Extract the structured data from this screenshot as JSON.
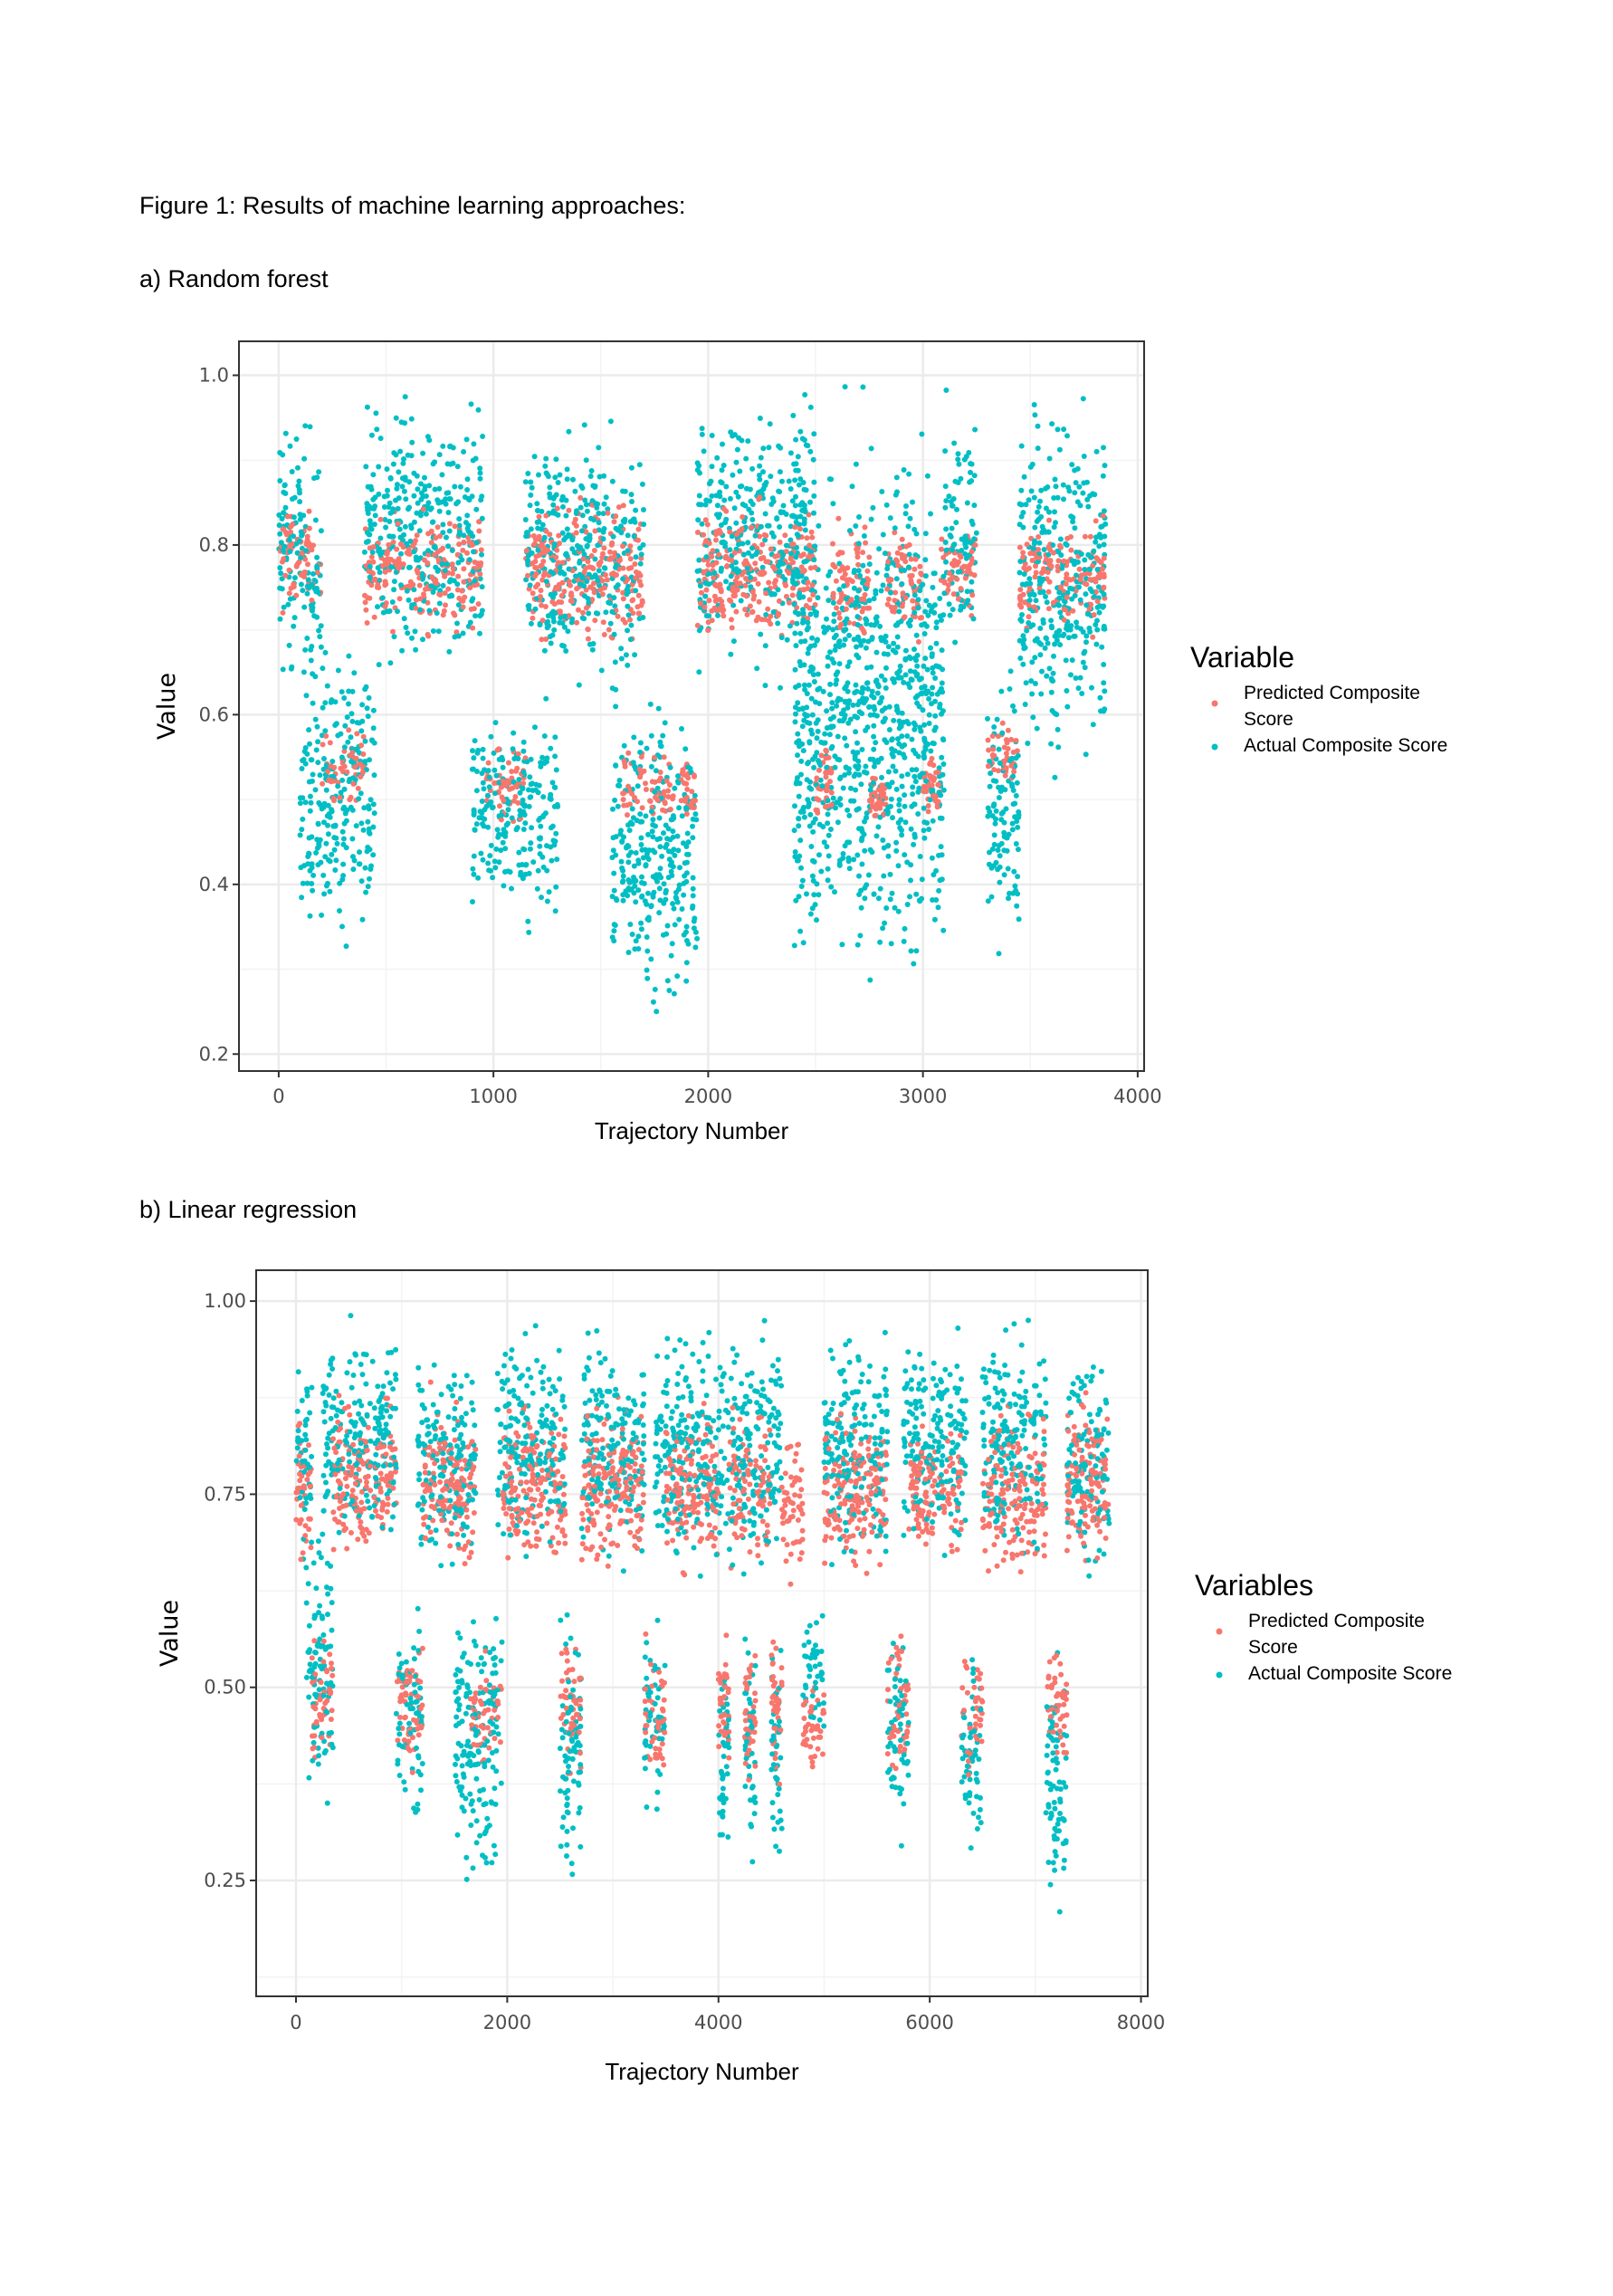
{
  "document": {
    "figure_caption": "Figure 1: Results of machine learning approaches:",
    "panel_a_label": "a) Random forest",
    "panel_b_label": "b) Linear regression"
  },
  "colors": {
    "predicted": "#F8766D",
    "actual": "#00BFC4"
  },
  "chart_data": [
    {
      "type": "scatter",
      "xlabel": "Trajectory Number",
      "ylabel": "Value",
      "xlim": [
        -185,
        4030
      ],
      "ylim": [
        0.18,
        1.04
      ],
      "xticks": [
        "0",
        "1000",
        "2000",
        "3000",
        "4000"
      ],
      "xtick_values": [
        0,
        1000,
        2000,
        3000,
        4000
      ],
      "yticks": [
        "0.2",
        "0.4",
        "0.6",
        "0.8",
        "1.0"
      ],
      "ytick_values": [
        0.2,
        0.4,
        0.6,
        0.8,
        1.0
      ],
      "grid": true,
      "legend": {
        "title": "Variable",
        "placement": "right",
        "entries": [
          "Predicted Composite",
          "Score",
          "Actual Composite Score"
        ]
      },
      "series": [
        {
          "name": "Predicted Composite Score",
          "color": "#F8766D",
          "clusters": [
            {
              "x": [
                0,
                200
              ],
              "y": [
                0.7,
                0.86
              ]
            },
            {
              "x": [
                200,
                400
              ],
              "y": [
                0.48,
                0.6
              ]
            },
            {
              "x": [
                400,
                950
              ],
              "y": [
                0.68,
                0.86
              ]
            },
            {
              "x": [
                950,
                1150
              ],
              "y": [
                0.46,
                0.58
              ]
            },
            {
              "x": [
                1150,
                1700
              ],
              "y": [
                0.66,
                0.87
              ]
            },
            {
              "x": [
                1600,
                1950
              ],
              "y": [
                0.45,
                0.57
              ]
            },
            {
              "x": [
                1950,
                2500
              ],
              "y": [
                0.66,
                0.87
              ]
            },
            {
              "x": [
                2500,
                2580
              ],
              "y": [
                0.47,
                0.57
              ]
            },
            {
              "x": [
                2580,
                2750
              ],
              "y": [
                0.66,
                0.86
              ]
            },
            {
              "x": [
                2750,
                2830
              ],
              "y": [
                0.46,
                0.55
              ]
            },
            {
              "x": [
                2830,
                3000
              ],
              "y": [
                0.66,
                0.84
              ]
            },
            {
              "x": [
                3000,
                3080
              ],
              "y": [
                0.47,
                0.56
              ]
            },
            {
              "x": [
                3080,
                3250
              ],
              "y": [
                0.7,
                0.85
              ]
            },
            {
              "x": [
                3300,
                3450
              ],
              "y": [
                0.5,
                0.6
              ]
            },
            {
              "x": [
                3450,
                3850
              ],
              "y": [
                0.68,
                0.85
              ]
            }
          ]
        },
        {
          "name": "Actual Composite Score",
          "color": "#00BFC4",
          "clusters": [
            {
              "x": [
                0,
                200
              ],
              "y": [
                0.6,
                0.98
              ]
            },
            {
              "x": [
                100,
                450
              ],
              "y": [
                0.3,
                0.73
              ]
            },
            {
              "x": [
                400,
                950
              ],
              "y": [
                0.62,
                1.0
              ]
            },
            {
              "x": [
                900,
                1300
              ],
              "y": [
                0.32,
                0.65
              ]
            },
            {
              "x": [
                1150,
                1700
              ],
              "y": [
                0.6,
                0.97
              ]
            },
            {
              "x": [
                1550,
                1950
              ],
              "y": [
                0.22,
                0.66
              ]
            },
            {
              "x": [
                1950,
                2500
              ],
              "y": [
                0.62,
                1.0
              ]
            },
            {
              "x": [
                2400,
                2600
              ],
              "y": [
                0.22,
                0.95
              ]
            },
            {
              "x": [
                2600,
                2850
              ],
              "y": [
                0.22,
                1.0
              ]
            },
            {
              "x": [
                2850,
                3100
              ],
              "y": [
                0.23,
                1.0
              ]
            },
            {
              "x": [
                3100,
                3250
              ],
              "y": [
                0.65,
                1.0
              ]
            },
            {
              "x": [
                3300,
                3450
              ],
              "y": [
                0.28,
                0.7
              ]
            },
            {
              "x": [
                3450,
                3850
              ],
              "y": [
                0.5,
                1.0
              ]
            }
          ]
        }
      ]
    },
    {
      "type": "scatter",
      "xlabel": "Trajectory Number",
      "ylabel": "Value",
      "xlim": [
        -377,
        8064
      ],
      "ylim": [
        0.1,
        1.04
      ],
      "xticks": [
        "0",
        "2000",
        "4000",
        "6000",
        "8000"
      ],
      "xtick_values": [
        0,
        2000,
        4000,
        6000,
        8000
      ],
      "yticks": [
        "0.25",
        "0.50",
        "0.75",
        "1.00"
      ],
      "ytick_values": [
        0.25,
        0.5,
        0.75,
        1.0
      ],
      "grid": true,
      "legend": {
        "title": "Variables",
        "placement": "right",
        "entries": [
          "Predicted Composite",
          "Score",
          "Actual Composite Score"
        ]
      },
      "series": [
        {
          "name": "Predicted Composite Score",
          "color": "#F8766D",
          "clusters": [
            {
              "x": [
                0,
                150
              ],
              "y": [
                0.62,
                0.88
              ]
            },
            {
              "x": [
                150,
                350
              ],
              "y": [
                0.37,
                0.6
              ]
            },
            {
              "x": [
                350,
                950
              ],
              "y": [
                0.64,
                0.9
              ]
            },
            {
              "x": [
                950,
                1200
              ],
              "y": [
                0.37,
                0.6
              ]
            },
            {
              "x": [
                1200,
                1700
              ],
              "y": [
                0.62,
                0.9
              ]
            },
            {
              "x": [
                1650,
                1950
              ],
              "y": [
                0.38,
                0.55
              ]
            },
            {
              "x": [
                1950,
                2550
              ],
              "y": [
                0.63,
                0.9
              ]
            },
            {
              "x": [
                2500,
                2700
              ],
              "y": [
                0.36,
                0.6
              ]
            },
            {
              "x": [
                2700,
                3300
              ],
              "y": [
                0.63,
                0.9
              ]
            },
            {
              "x": [
                3300,
                3500
              ],
              "y": [
                0.36,
                0.58
              ]
            },
            {
              "x": [
                3500,
                4000
              ],
              "y": [
                0.62,
                0.9
              ]
            },
            {
              "x": [
                4000,
                4100
              ],
              "y": [
                0.35,
                0.58
              ]
            },
            {
              "x": [
                4100,
                4300
              ],
              "y": [
                0.62,
                0.88
              ]
            },
            {
              "x": [
                4250,
                4350
              ],
              "y": [
                0.35,
                0.58
              ]
            },
            {
              "x": [
                4350,
                4500
              ],
              "y": [
                0.62,
                0.88
              ]
            },
            {
              "x": [
                4500,
                4600
              ],
              "y": [
                0.35,
                0.58
              ]
            },
            {
              "x": [
                4600,
                4800
              ],
              "y": [
                0.62,
                0.88
              ]
            },
            {
              "x": [
                4800,
                5000
              ],
              "y": [
                0.38,
                0.52
              ]
            },
            {
              "x": [
                5000,
                5600
              ],
              "y": [
                0.62,
                0.88
              ]
            },
            {
              "x": [
                5600,
                5800
              ],
              "y": [
                0.36,
                0.6
              ]
            },
            {
              "x": [
                5800,
                6300
              ],
              "y": [
                0.63,
                0.88
              ]
            },
            {
              "x": [
                6300,
                6500
              ],
              "y": [
                0.38,
                0.58
              ]
            },
            {
              "x": [
                6500,
                7100
              ],
              "y": [
                0.62,
                0.88
              ]
            },
            {
              "x": [
                7100,
                7300
              ],
              "y": [
                0.37,
                0.59
              ]
            },
            {
              "x": [
                7300,
                7700
              ],
              "y": [
                0.62,
                0.92
              ]
            }
          ]
        },
        {
          "name": "Actual Composite Score",
          "color": "#00BFC4",
          "clusters": [
            {
              "x": [
                0,
                150
              ],
              "y": [
                0.62,
                0.98
              ]
            },
            {
              "x": [
                100,
                350
              ],
              "y": [
                0.3,
                0.75
              ]
            },
            {
              "x": [
                250,
                950
              ],
              "y": [
                0.64,
                1.0
              ]
            },
            {
              "x": [
                950,
                1200
              ],
              "y": [
                0.3,
                0.63
              ]
            },
            {
              "x": [
                1150,
                1700
              ],
              "y": [
                0.62,
                0.97
              ]
            },
            {
              "x": [
                1500,
                1950
              ],
              "y": [
                0.21,
                0.65
              ]
            },
            {
              "x": [
                1900,
                2550
              ],
              "y": [
                0.63,
                1.0
              ]
            },
            {
              "x": [
                2500,
                2700
              ],
              "y": [
                0.18,
                0.66
              ]
            },
            {
              "x": [
                2700,
                3300
              ],
              "y": [
                0.63,
                1.0
              ]
            },
            {
              "x": [
                3300,
                3500
              ],
              "y": [
                0.3,
                0.62
              ]
            },
            {
              "x": [
                3400,
                4100
              ],
              "y": [
                0.62,
                1.0
              ]
            },
            {
              "x": [
                4000,
                4100
              ],
              "y": [
                0.22,
                0.6
              ]
            },
            {
              "x": [
                4100,
                4350
              ],
              "y": [
                0.6,
                1.0
              ]
            },
            {
              "x": [
                4250,
                4350
              ],
              "y": [
                0.22,
                0.6
              ]
            },
            {
              "x": [
                4350,
                4600
              ],
              "y": [
                0.62,
                1.0
              ]
            },
            {
              "x": [
                4500,
                4600
              ],
              "y": [
                0.22,
                0.58
              ]
            },
            {
              "x": [
                4800,
                5000
              ],
              "y": [
                0.38,
                0.65
              ]
            },
            {
              "x": [
                5000,
                5600
              ],
              "y": [
                0.62,
                1.0
              ]
            },
            {
              "x": [
                5600,
                5800
              ],
              "y": [
                0.27,
                0.62
              ]
            },
            {
              "x": [
                5750,
                6350
              ],
              "y": [
                0.63,
                1.0
              ]
            },
            {
              "x": [
                6300,
                6500
              ],
              "y": [
                0.26,
                0.6
              ]
            },
            {
              "x": [
                6500,
                7100
              ],
              "y": [
                0.62,
                1.0
              ]
            },
            {
              "x": [
                7100,
                7300
              ],
              "y": [
                0.14,
                0.6
              ]
            },
            {
              "x": [
                7300,
                7700
              ],
              "y": [
                0.62,
                0.97
              ]
            }
          ]
        }
      ]
    }
  ]
}
